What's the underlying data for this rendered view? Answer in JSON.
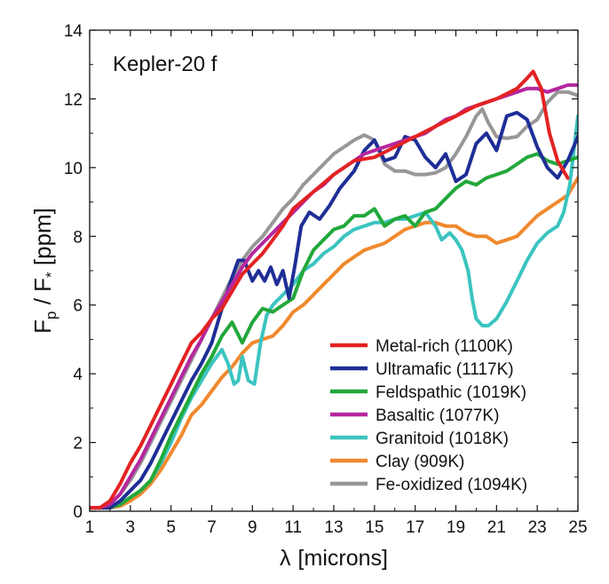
{
  "chart_data": {
    "type": "line",
    "title": "",
    "annotation": "Kepler-20 f",
    "xlabel": {
      "symbol": "λ",
      "text": "[microns]"
    },
    "ylabel": {
      "main": "F",
      "main_sub": "p",
      "slash": " / F",
      "star_sub": "*",
      "unit": " [ppm]"
    },
    "xlim": [
      1,
      25
    ],
    "ylim": [
      0,
      14
    ],
    "xticks": [
      1,
      3,
      5,
      7,
      9,
      11,
      13,
      15,
      17,
      19,
      21,
      23,
      25
    ],
    "yticks": [
      0,
      2,
      4,
      6,
      8,
      10,
      12,
      14
    ],
    "grid": false,
    "legend_position": "bottom-right",
    "series": [
      {
        "name": "Metal-rich (1100K)",
        "color": "#e32222",
        "x": [
          1,
          1.5,
          2,
          2.5,
          3,
          3.5,
          4,
          4.5,
          5,
          5.5,
          6,
          6.5,
          7,
          7.5,
          8,
          8.5,
          9,
          9.5,
          10,
          10.5,
          11,
          12,
          13,
          14,
          15,
          16,
          17,
          18,
          19,
          20,
          21,
          22,
          22.5,
          22.8,
          23.2,
          23.6,
          24,
          24.5
        ],
        "y": [
          0.1,
          0.1,
          0.3,
          0.8,
          1.4,
          1.9,
          2.5,
          3.1,
          3.7,
          4.3,
          4.9,
          5.2,
          5.6,
          5.9,
          6.4,
          6.9,
          7.2,
          7.5,
          7.9,
          8.3,
          8.8,
          9.3,
          9.8,
          10.2,
          10.3,
          10.6,
          10.9,
          11.2,
          11.5,
          11.8,
          12.0,
          12.3,
          12.6,
          12.8,
          12.3,
          11.0,
          10.2,
          9.7
        ]
      },
      {
        "name": "Ultramafic (1117K)",
        "color": "#1e2e96",
        "x": [
          1,
          1.5,
          2,
          2.5,
          3,
          3.5,
          4,
          4.5,
          5,
          5.5,
          6,
          6.5,
          7,
          7.5,
          8,
          8.3,
          8.6,
          9,
          9.3,
          9.6,
          9.9,
          10.2,
          10.5,
          10.8,
          11.1,
          11.4,
          11.8,
          12.3,
          12.8,
          13.3,
          14,
          14.5,
          15,
          15.5,
          16,
          16.5,
          17,
          17.5,
          18,
          18.5,
          19,
          19.5,
          20,
          20.5,
          21,
          21.5,
          22,
          22.5,
          23,
          23.5,
          24,
          24.5,
          25
        ],
        "y": [
          0.1,
          0.1,
          0.1,
          0.3,
          0.6,
          0.9,
          1.4,
          2.0,
          2.6,
          3.2,
          3.8,
          4.3,
          4.9,
          5.9,
          6.8,
          7.3,
          7.3,
          6.7,
          7.0,
          6.7,
          7.1,
          6.6,
          7.0,
          6.2,
          7.2,
          8.3,
          8.7,
          8.5,
          8.9,
          9.4,
          9.9,
          10.5,
          10.8,
          10.2,
          10.3,
          10.9,
          10.8,
          10.3,
          10.0,
          10.4,
          9.6,
          9.8,
          10.7,
          11.0,
          10.5,
          11.5,
          11.6,
          11.4,
          10.6,
          10.0,
          9.7,
          10.2,
          10.9
        ]
      },
      {
        "name": "Feldspathic (1019K)",
        "color": "#22a83a",
        "x": [
          1,
          1.5,
          2,
          2.5,
          3,
          3.5,
          4,
          4.5,
          5,
          5.5,
          6,
          6.5,
          7,
          7.5,
          8,
          8.5,
          9,
          9.5,
          10,
          10.5,
          11,
          11.5,
          12,
          12.5,
          13,
          13.5,
          14,
          14.5,
          15,
          15.5,
          16,
          16.5,
          17,
          17.5,
          18,
          18.5,
          19,
          19.5,
          20,
          20.5,
          21,
          21.5,
          22,
          22.5,
          23,
          23.5,
          24,
          24.5,
          25
        ],
        "y": [
          0.1,
          0.1,
          0.1,
          0.2,
          0.4,
          0.6,
          0.9,
          1.5,
          2.2,
          2.8,
          3.4,
          4.0,
          4.5,
          5.1,
          5.5,
          4.9,
          5.5,
          5.9,
          5.8,
          6.0,
          6.2,
          7.0,
          7.6,
          7.9,
          8.2,
          8.3,
          8.6,
          8.6,
          8.8,
          8.3,
          8.5,
          8.6,
          8.3,
          8.7,
          8.8,
          9.1,
          9.4,
          9.6,
          9.5,
          9.7,
          9.8,
          9.9,
          10.1,
          10.3,
          10.4,
          10.2,
          10.1,
          10.2,
          10.3
        ]
      },
      {
        "name": "Basaltic (1077K)",
        "color": "#b5269e",
        "x": [
          1,
          1.5,
          2,
          2.5,
          3,
          3.5,
          4,
          4.5,
          5,
          5.5,
          6,
          6.5,
          7,
          7.5,
          8,
          8.5,
          9,
          9.5,
          10,
          10.5,
          11,
          11.5,
          12,
          12.5,
          13,
          13.5,
          14,
          14.5,
          15,
          15.5,
          16,
          16.5,
          17,
          17.5,
          18,
          18.5,
          19,
          19.5,
          20,
          20.5,
          21,
          21.5,
          22,
          22.5,
          23,
          23.5,
          24,
          24.5,
          25
        ],
        "y": [
          0.1,
          0.1,
          0.2,
          0.5,
          1.0,
          1.5,
          2.1,
          2.7,
          3.3,
          3.9,
          4.5,
          5.0,
          5.6,
          6.1,
          6.6,
          7.1,
          7.5,
          7.8,
          8.1,
          8.4,
          8.7,
          9.0,
          9.3,
          9.5,
          9.8,
          10.0,
          10.2,
          10.4,
          10.5,
          10.6,
          10.7,
          10.8,
          10.9,
          11.0,
          11.2,
          11.4,
          11.5,
          11.7,
          11.8,
          11.9,
          12.0,
          12.1,
          12.2,
          12.3,
          12.3,
          12.2,
          12.3,
          12.4,
          12.4
        ]
      },
      {
        "name": "Granitoid (1018K)",
        "color": "#3bc4c0",
        "x": [
          1,
          1.5,
          2,
          2.5,
          3,
          3.5,
          4,
          4.5,
          5,
          5.5,
          6,
          6.5,
          7,
          7.5,
          7.8,
          8.1,
          8.3,
          8.5,
          8.8,
          9.1,
          9.4,
          9.7,
          10,
          10.5,
          11,
          11.5,
          12,
          12.5,
          13,
          13.5,
          14,
          14.5,
          15,
          15.5,
          16,
          16.5,
          17,
          17.5,
          18,
          18.3,
          18.7,
          19,
          19.3,
          19.6,
          19.8,
          20,
          20.3,
          20.6,
          21,
          21.5,
          22,
          22.5,
          23,
          23.5,
          24,
          24.3,
          24.6,
          25
        ],
        "y": [
          0.1,
          0.1,
          0.1,
          0.2,
          0.4,
          0.6,
          0.9,
          1.4,
          2.0,
          2.7,
          3.3,
          3.8,
          4.3,
          4.7,
          4.3,
          3.7,
          3.8,
          4.5,
          3.8,
          3.7,
          4.9,
          5.7,
          6.0,
          6.3,
          6.6,
          7.0,
          7.2,
          7.5,
          7.7,
          8.0,
          8.2,
          8.3,
          8.4,
          8.4,
          8.5,
          8.5,
          8.6,
          8.7,
          8.3,
          7.9,
          8.1,
          7.9,
          7.6,
          7.0,
          6.2,
          5.6,
          5.4,
          5.4,
          5.6,
          6.1,
          6.7,
          7.3,
          7.8,
          8.1,
          8.3,
          8.7,
          9.5,
          11.5
        ]
      },
      {
        "name": "Clay (909K)",
        "color": "#f0892e",
        "x": [
          1,
          1.5,
          2,
          2.5,
          3,
          3.5,
          4,
          4.5,
          5,
          5.5,
          6,
          6.5,
          7,
          7.5,
          8,
          8.5,
          9,
          9.5,
          10,
          10.5,
          11,
          11.5,
          12,
          12.5,
          13,
          13.5,
          14,
          14.5,
          15,
          15.5,
          16,
          16.5,
          17,
          17.5,
          18,
          18.5,
          19,
          19.5,
          20,
          20.5,
          21,
          21.5,
          22,
          22.5,
          23,
          23.5,
          24,
          24.5,
          25
        ],
        "y": [
          0.1,
          0.1,
          0.1,
          0.15,
          0.3,
          0.5,
          0.8,
          1.2,
          1.7,
          2.2,
          2.8,
          3.1,
          3.5,
          3.9,
          4.2,
          4.6,
          4.9,
          5.0,
          5.1,
          5.4,
          5.8,
          6.0,
          6.3,
          6.6,
          6.9,
          7.2,
          7.4,
          7.6,
          7.7,
          7.8,
          8.0,
          8.2,
          8.3,
          8.4,
          8.4,
          8.3,
          8.3,
          8.1,
          8.0,
          8.0,
          7.8,
          7.9,
          8.0,
          8.3,
          8.6,
          8.8,
          9.0,
          9.2,
          9.7
        ]
      },
      {
        "name": "Fe-oxidized (1094K)",
        "color": "#979797",
        "x": [
          1,
          1.5,
          2,
          2.5,
          3,
          3.5,
          4,
          4.5,
          5,
          5.5,
          6,
          6.5,
          7,
          7.5,
          8,
          8.5,
          9,
          9.5,
          10,
          10.5,
          11,
          11.5,
          12,
          12.5,
          13,
          13.5,
          14,
          14.5,
          15,
          15.5,
          16,
          16.5,
          17,
          17.5,
          18,
          18.5,
          19,
          19.5,
          20,
          20.3,
          20.6,
          21,
          21.5,
          22,
          22.5,
          23,
          23.5,
          24,
          24.5,
          25
        ],
        "y": [
          0.1,
          0.1,
          0.2,
          0.5,
          0.9,
          1.4,
          2.0,
          2.6,
          3.2,
          3.8,
          4.4,
          5.0,
          5.6,
          6.2,
          6.8,
          7.3,
          7.7,
          8.0,
          8.4,
          8.8,
          9.1,
          9.5,
          9.8,
          10.1,
          10.4,
          10.6,
          10.8,
          10.95,
          10.8,
          10.1,
          9.9,
          9.9,
          9.8,
          9.8,
          9.85,
          10.0,
          10.4,
          10.9,
          11.5,
          11.7,
          11.3,
          10.9,
          10.85,
          10.9,
          11.2,
          11.4,
          11.9,
          12.2,
          12.2,
          12.1
        ]
      }
    ]
  }
}
